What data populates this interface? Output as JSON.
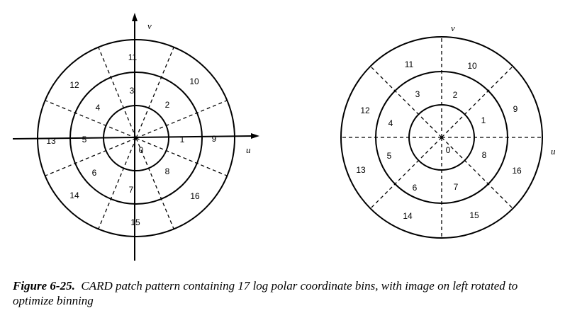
{
  "diagrams": {
    "left": {
      "axis_v_label": "v",
      "axis_u_label": "u",
      "bins": [
        "0",
        "1",
        "2",
        "3",
        "4",
        "5",
        "6",
        "7",
        "8",
        "9",
        "10",
        "11",
        "12",
        "13",
        "14",
        "15",
        "16"
      ]
    },
    "right": {
      "axis_v_label": "v",
      "axis_u_label": "u",
      "bins": [
        "0",
        "1",
        "2",
        "3",
        "4",
        "5",
        "6",
        "7",
        "8",
        "9",
        "10",
        "11",
        "12",
        "13",
        "14",
        "15",
        "16"
      ]
    }
  },
  "caption": {
    "figure_label": "Figure 6-25.",
    "text": "CARD patch pattern containing 17 log polar coordinate bins, with image on left rotated to optimize binning"
  }
}
